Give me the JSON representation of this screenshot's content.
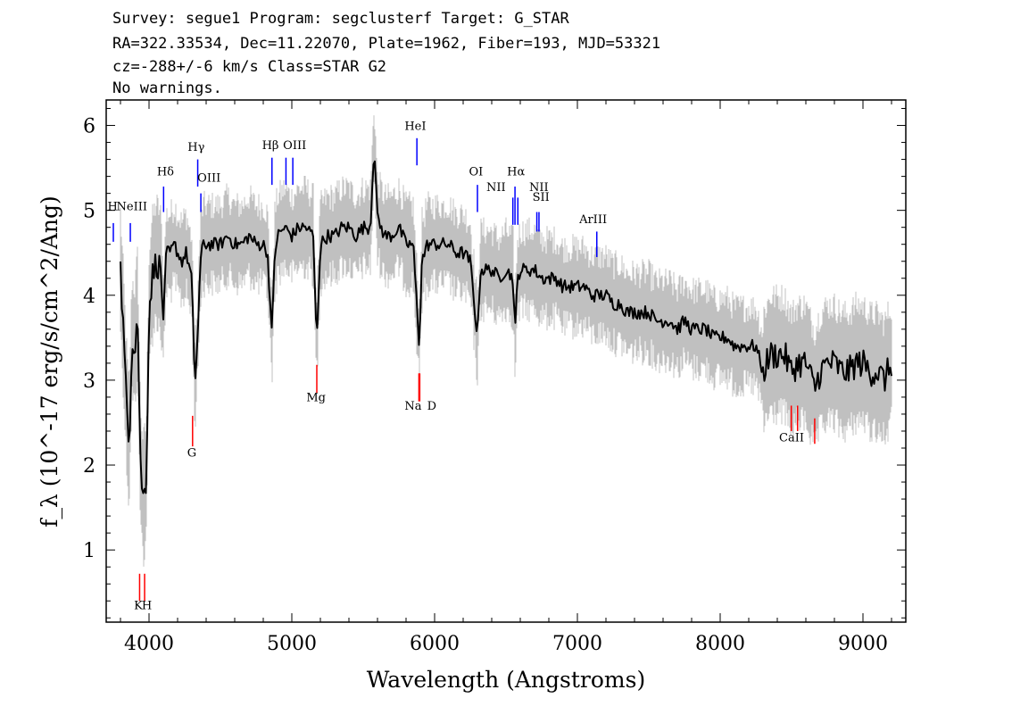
{
  "header": {
    "line1": "Survey: segue1 Program: segclusterf Target: G_STAR",
    "line2": "RA=322.33534, Dec=11.22070, Plate=1962, Fiber=193, MJD=53321",
    "line3": "cz=-288+/-6 km/s Class=STAR G2",
    "line4": "No warnings."
  },
  "chart_data": {
    "type": "line",
    "xlabel": "Wavelength (Angstroms)",
    "ylabel": "f_λ (10^-17 erg/s/cm^2/Ang)",
    "xlim": [
      3700,
      9300
    ],
    "ylim": [
      0.15,
      6.3
    ],
    "xticks": [
      4000,
      5000,
      6000,
      7000,
      8000,
      9000
    ],
    "yticks": [
      1,
      2,
      3,
      4,
      5,
      6
    ],
    "colors": {
      "flux": "#000000",
      "error_band": "#c0c0c0",
      "emission_marker": "#0000ff",
      "absorption_marker": "#ff0000"
    },
    "series": [
      {
        "name": "flux",
        "x": [
          3800,
          3820,
          3840,
          3860,
          3880,
          3900,
          3920,
          3940,
          3960,
          3980,
          4000,
          4020,
          4050,
          4080,
          4102,
          4120,
          4150,
          4180,
          4200,
          4230,
          4260,
          4300,
          4320,
          4340,
          4360,
          4380,
          4400,
          4450,
          4500,
          4550,
          4600,
          4650,
          4700,
          4750,
          4800,
          4830,
          4861,
          4880,
          4900,
          4950,
          5000,
          5050,
          5100,
          5150,
          5172,
          5180,
          5200,
          5250,
          5300,
          5350,
          5400,
          5450,
          5500,
          5550,
          5577,
          5600,
          5650,
          5700,
          5750,
          5800,
          5850,
          5893,
          5910,
          5950,
          6000,
          6050,
          6100,
          6150,
          6200,
          6250,
          6300,
          6320,
          6350,
          6400,
          6450,
          6500,
          6550,
          6563,
          6580,
          6600,
          6650,
          6700,
          6750,
          6800,
          6850,
          6900,
          6950,
          7000,
          7050,
          7100,
          7150,
          7200,
          7250,
          7300,
          7350,
          7400,
          7450,
          7500,
          7550,
          7600,
          7650,
          7700,
          7750,
          7800,
          7850,
          7900,
          7950,
          8000,
          8050,
          8100,
          8150,
          8200,
          8250,
          8300,
          8350,
          8400,
          8450,
          8498,
          8542,
          8600,
          8662,
          8700,
          8750,
          8800,
          8850,
          8900,
          8950,
          9000,
          9050,
          9100,
          9150,
          9200
        ],
        "y": [
          4.3,
          3.6,
          2.8,
          2.2,
          3.5,
          3.4,
          3.8,
          2.0,
          1.6,
          1.8,
          3.8,
          4.2,
          4.4,
          4.3,
          3.7,
          4.5,
          4.5,
          4.6,
          4.5,
          4.4,
          4.5,
          4.2,
          2.9,
          3.5,
          4.4,
          4.6,
          4.6,
          4.6,
          4.6,
          4.7,
          4.6,
          4.6,
          4.7,
          4.6,
          4.6,
          4.5,
          3.5,
          4.5,
          4.7,
          4.8,
          4.7,
          4.8,
          4.8,
          4.7,
          3.5,
          3.7,
          4.6,
          4.7,
          4.7,
          4.8,
          4.8,
          4.7,
          4.8,
          4.8,
          5.8,
          4.9,
          4.7,
          4.7,
          4.8,
          4.6,
          4.6,
          3.4,
          4.4,
          4.6,
          4.6,
          4.6,
          4.6,
          4.5,
          4.5,
          4.4,
          3.5,
          4.3,
          4.3,
          4.3,
          4.2,
          4.3,
          4.2,
          3.5,
          4.2,
          4.3,
          4.3,
          4.3,
          4.2,
          4.2,
          4.2,
          4.1,
          4.1,
          4.1,
          4.1,
          4.0,
          4.0,
          4.0,
          3.9,
          3.9,
          3.8,
          3.8,
          3.8,
          3.8,
          3.7,
          3.7,
          3.7,
          3.6,
          3.7,
          3.6,
          3.6,
          3.6,
          3.5,
          3.5,
          3.5,
          3.4,
          3.4,
          3.4,
          3.4,
          3.1,
          3.3,
          3.3,
          3.3,
          3.1,
          3.2,
          3.2,
          2.9,
          3.1,
          3.2,
          3.2,
          3.1,
          3.1,
          3.2,
          3.2,
          3.1,
          3.1,
          3.0,
          3.2
        ]
      }
    ],
    "emission_lines": [
      {
        "label": "H",
        "x": 3750,
        "y0": 4.63,
        "y1": 4.85
      },
      {
        "label": "NeIII",
        "x": 3869,
        "y0": 4.63,
        "y1": 4.85
      },
      {
        "label": "Hδ",
        "x": 4102,
        "y0": 4.98,
        "y1": 5.28
      },
      {
        "label": "Hγ",
        "x": 4341,
        "y0": 5.28,
        "y1": 5.6
      },
      {
        "label": "OIII",
        "x": 4363,
        "y0": 4.98,
        "y1": 5.2
      },
      {
        "label": "Hβ",
        "x": 4861,
        "y0": 5.3,
        "y1": 5.62
      },
      {
        "label": "OIII",
        "x": 4959,
        "y0": 5.3,
        "y1": 5.62
      },
      {
        "label": "OIII",
        "x": 5007,
        "y0": 5.3,
        "y1": 5.62
      },
      {
        "label": "HeI",
        "x": 5876,
        "y0": 5.53,
        "y1": 5.85
      },
      {
        "label": "OI",
        "x": 6300,
        "y0": 4.98,
        "y1": 5.3
      },
      {
        "label": "NII",
        "x": 6548,
        "y0": 4.83,
        "y1": 5.15
      },
      {
        "label": "Hα",
        "x": 6563,
        "y0": 4.83,
        "y1": 5.28
      },
      {
        "label": "NII",
        "x": 6583,
        "y0": 4.83,
        "y1": 5.15
      },
      {
        "label": "SII",
        "x": 6716,
        "y0": 4.75,
        "y1": 4.98
      },
      {
        "label": "SII",
        "x": 6731,
        "y0": 4.75,
        "y1": 4.98
      },
      {
        "label": "ArIII",
        "x": 7136,
        "y0": 4.45,
        "y1": 4.75
      }
    ],
    "absorption_lines": [
      {
        "label": "K",
        "x": 3934,
        "y0": 0.4,
        "y1": 0.72
      },
      {
        "label": "H",
        "x": 3969,
        "y0": 0.4,
        "y1": 0.72
      },
      {
        "label": "G",
        "x": 4305,
        "y0": 2.22,
        "y1": 2.58
      },
      {
        "label": "Mg",
        "x": 5175,
        "y0": 2.85,
        "y1": 3.18
      },
      {
        "label": "Na",
        "x": 5890,
        "y0": 2.75,
        "y1": 3.08
      },
      {
        "label": "D",
        "x": 5896,
        "y0": 2.75,
        "y1": 3.08
      },
      {
        "label": "CaII",
        "x": 8498,
        "y0": 2.4,
        "y1": 2.7
      },
      {
        "label": "CaII",
        "x": 8542,
        "y0": 2.4,
        "y1": 2.7
      },
      {
        "label": "CaII",
        "x": 8662,
        "y0": 2.25,
        "y1": 2.55
      }
    ],
    "line_labels": [
      {
        "text": "H",
        "x": 3745,
        "y": 5.0
      },
      {
        "text": "NeIII",
        "x": 3880,
        "y": 5.0
      },
      {
        "text": "Hδ",
        "x": 4115,
        "y": 5.41
      },
      {
        "text": "Hγ",
        "x": 4330,
        "y": 5.7
      },
      {
        "text": "OIII",
        "x": 4420,
        "y": 5.34
      },
      {
        "text": "Hβ",
        "x": 4850,
        "y": 5.72
      },
      {
        "text": "OIII",
        "x": 5020,
        "y": 5.72
      },
      {
        "text": "HeI",
        "x": 5865,
        "y": 5.95
      },
      {
        "text": "OI",
        "x": 6290,
        "y": 5.41
      },
      {
        "text": "NII",
        "x": 6430,
        "y": 5.23
      },
      {
        "text": "Hα",
        "x": 6570,
        "y": 5.41
      },
      {
        "text": "NII",
        "x": 6730,
        "y": 5.23
      },
      {
        "text": "SII",
        "x": 6745,
        "y": 5.11
      },
      {
        "text": "ArIII",
        "x": 7110,
        "y": 4.85
      },
      {
        "text": "K",
        "x": 3925,
        "y": 0.3
      },
      {
        "text": "H",
        "x": 3985,
        "y": 0.3
      },
      {
        "text": "G",
        "x": 4300,
        "y": 2.1
      },
      {
        "text": "Mg",
        "x": 5170,
        "y": 2.75
      },
      {
        "text": "Na",
        "x": 5850,
        "y": 2.65
      },
      {
        "text": "D",
        "x": 5980,
        "y": 2.65
      },
      {
        "text": "CaII",
        "x": 8500,
        "y": 2.28
      }
    ]
  }
}
